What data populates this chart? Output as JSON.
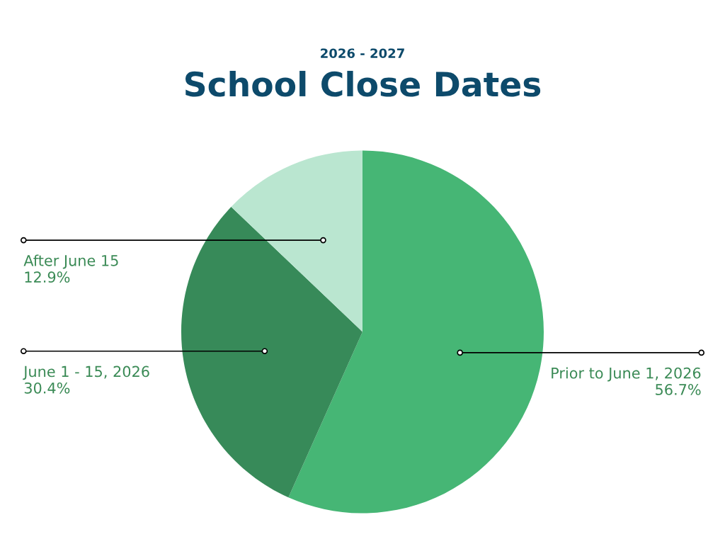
{
  "chart_data": {
    "type": "pie",
    "subtitle": "2026 - 2027",
    "title": "School Close Dates",
    "categories": [
      "Prior to June 1, 2026",
      "June 1 - 15, 2026",
      "After June 15"
    ],
    "values": [
      56.7,
      30.4,
      12.9
    ],
    "value_labels": [
      "56.7%",
      "30.4%",
      "12.9%"
    ],
    "colors": [
      "#46b675",
      "#378a59",
      "#bae6d0"
    ],
    "legend": false
  }
}
